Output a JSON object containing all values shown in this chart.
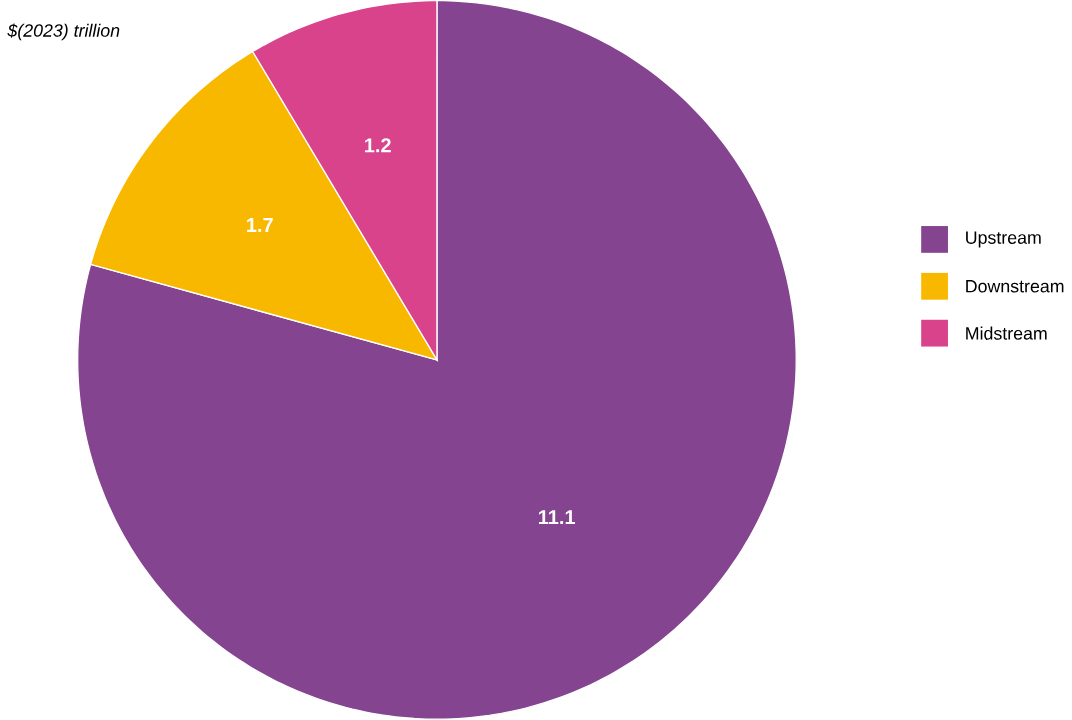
{
  "chart_data": {
    "type": "pie",
    "title": "*$(2023) trillion*",
    "categories": [
      "Upstream",
      "Downstream",
      "Midstream"
    ],
    "values": [
      11.1,
      1.7,
      1.2
    ],
    "colors": [
      "#84448f",
      "#f9b800",
      "#d9438b"
    ],
    "data_labels": true,
    "legend": "right"
  }
}
